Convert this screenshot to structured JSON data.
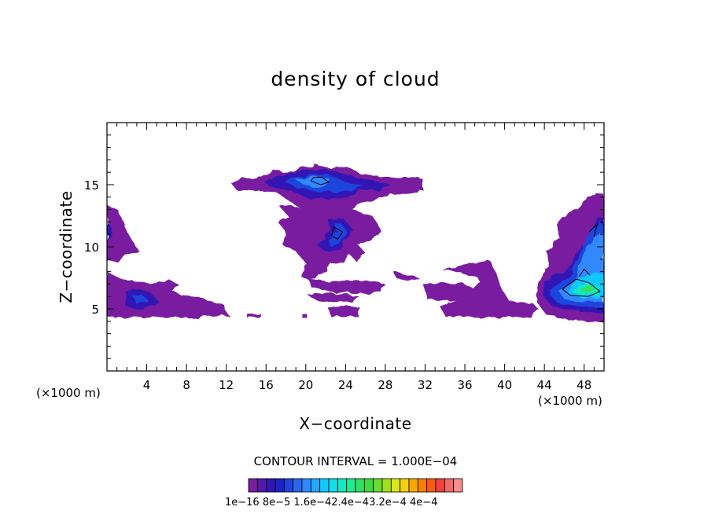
{
  "chart_data": {
    "type": "heatmap",
    "title": "density of cloud",
    "xlabel": "X−coordinate",
    "ylabel": "Z−coordinate",
    "x_unit": "(×1000 m)",
    "xlim": [
      0,
      50
    ],
    "ylim": [
      0,
      20
    ],
    "x_ticks": [
      4,
      8,
      12,
      16,
      20,
      24,
      28,
      32,
      36,
      40,
      44,
      48
    ],
    "y_ticks": [
      5,
      10,
      15
    ],
    "contour_interval_label": "CONTOUR INTERVAL = 1.000E−04",
    "colorbar": {
      "label_text": "1e−16  8e−5  1.6e−42.4e−43.2e−4  4e−4",
      "colors": [
        "#7a1fa0",
        "#5518a8",
        "#3015b5",
        "#1a22c8",
        "#1f44dc",
        "#2a66ee",
        "#3388ff",
        "#22a8ff",
        "#11c8ff",
        "#10dde8",
        "#18e8c0",
        "#22e890",
        "#30e060",
        "#40d840",
        "#6cdc30",
        "#a0e020",
        "#d8e818",
        "#f0d010",
        "#f8a800",
        "#f88000",
        "#f85a10",
        "#f04040",
        "#f06a6a",
        "#f49090"
      ]
    },
    "regions": [
      {
        "name": "upper-anvil",
        "x": [
          14,
          32
        ],
        "z": [
          13.5,
          16.6
        ],
        "peak_level": "1.6e-4"
      },
      {
        "name": "mid-column",
        "x": [
          17,
          28
        ],
        "z": [
          7,
          13.5
        ],
        "peak_level": "1.6e-4"
      },
      {
        "name": "left-edge-lower",
        "x": [
          0,
          10
        ],
        "z": [
          4.3,
          8
        ],
        "peak_level": "8e-5"
      },
      {
        "name": "left-edge-upper",
        "x": [
          0,
          3
        ],
        "z": [
          9.5,
          13.2
        ],
        "peak_level": "8e-5"
      },
      {
        "name": "lower-band",
        "x": [
          12,
          44
        ],
        "z": [
          4.3,
          8.5
        ],
        "peak_level": "1e-16"
      },
      {
        "name": "right-edge-cell",
        "x": [
          43,
          50
        ],
        "z": [
          4,
          14.2
        ],
        "peak_level": "2.4e-4"
      }
    ]
  }
}
